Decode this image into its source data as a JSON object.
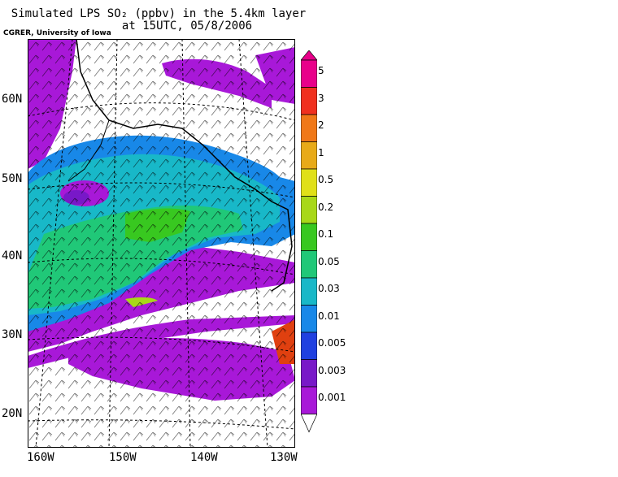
{
  "title": {
    "line1": "Simulated LPS SO₂ (ppbv) in the 5.4km layer",
    "line2": "at 15UTC, 05/8/2006"
  },
  "credit": "CGRER, University of Iowa",
  "axes": {
    "lat_labels": [
      "60N",
      "50N",
      "40N",
      "30N",
      "20N"
    ],
    "lon_labels": [
      "160W",
      "150W",
      "140W",
      "130W"
    ]
  },
  "colorbar": {
    "levels": [
      "5",
      "3",
      "2",
      "1",
      "0.5",
      "0.2",
      "0.1",
      "0.05",
      "0.03",
      "0.01",
      "0.005",
      "0.003",
      "0.001"
    ],
    "colors": [
      "#e8008a",
      "#f0301e",
      "#f07818",
      "#e8aa18",
      "#e0e018",
      "#a8d818",
      "#38c820",
      "#20c878",
      "#18b8c8",
      "#1888e8",
      "#2040e0",
      "#7818c8",
      "#a818d8"
    ]
  }
}
